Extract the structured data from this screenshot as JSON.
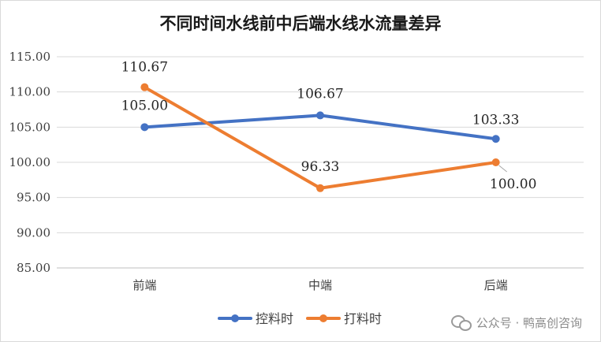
{
  "chart_data": {
    "type": "line",
    "title": "不同时间水线前中后端水线水流量差异",
    "categories": [
      "前端",
      "中端",
      "后端"
    ],
    "ylim": [
      85,
      115
    ],
    "yticks": [
      "85.00",
      "90.00",
      "95.00",
      "100.00",
      "105.00",
      "110.00",
      "115.00"
    ],
    "grid": true,
    "legend_position": "bottom",
    "series": [
      {
        "name": "控料时",
        "color": "#4472c4",
        "values": [
          105.0,
          106.67,
          103.33
        ],
        "labels": [
          "105.00",
          "106.67",
          "103.33"
        ]
      },
      {
        "name": "打料时",
        "color": "#ed7d31",
        "values": [
          110.67,
          96.33,
          100.0
        ],
        "labels": [
          "110.67",
          "96.33",
          "100.00"
        ]
      }
    ]
  },
  "watermark": {
    "icon": "wechat-icon",
    "text": "公众号 · 鸭高创咨询"
  }
}
